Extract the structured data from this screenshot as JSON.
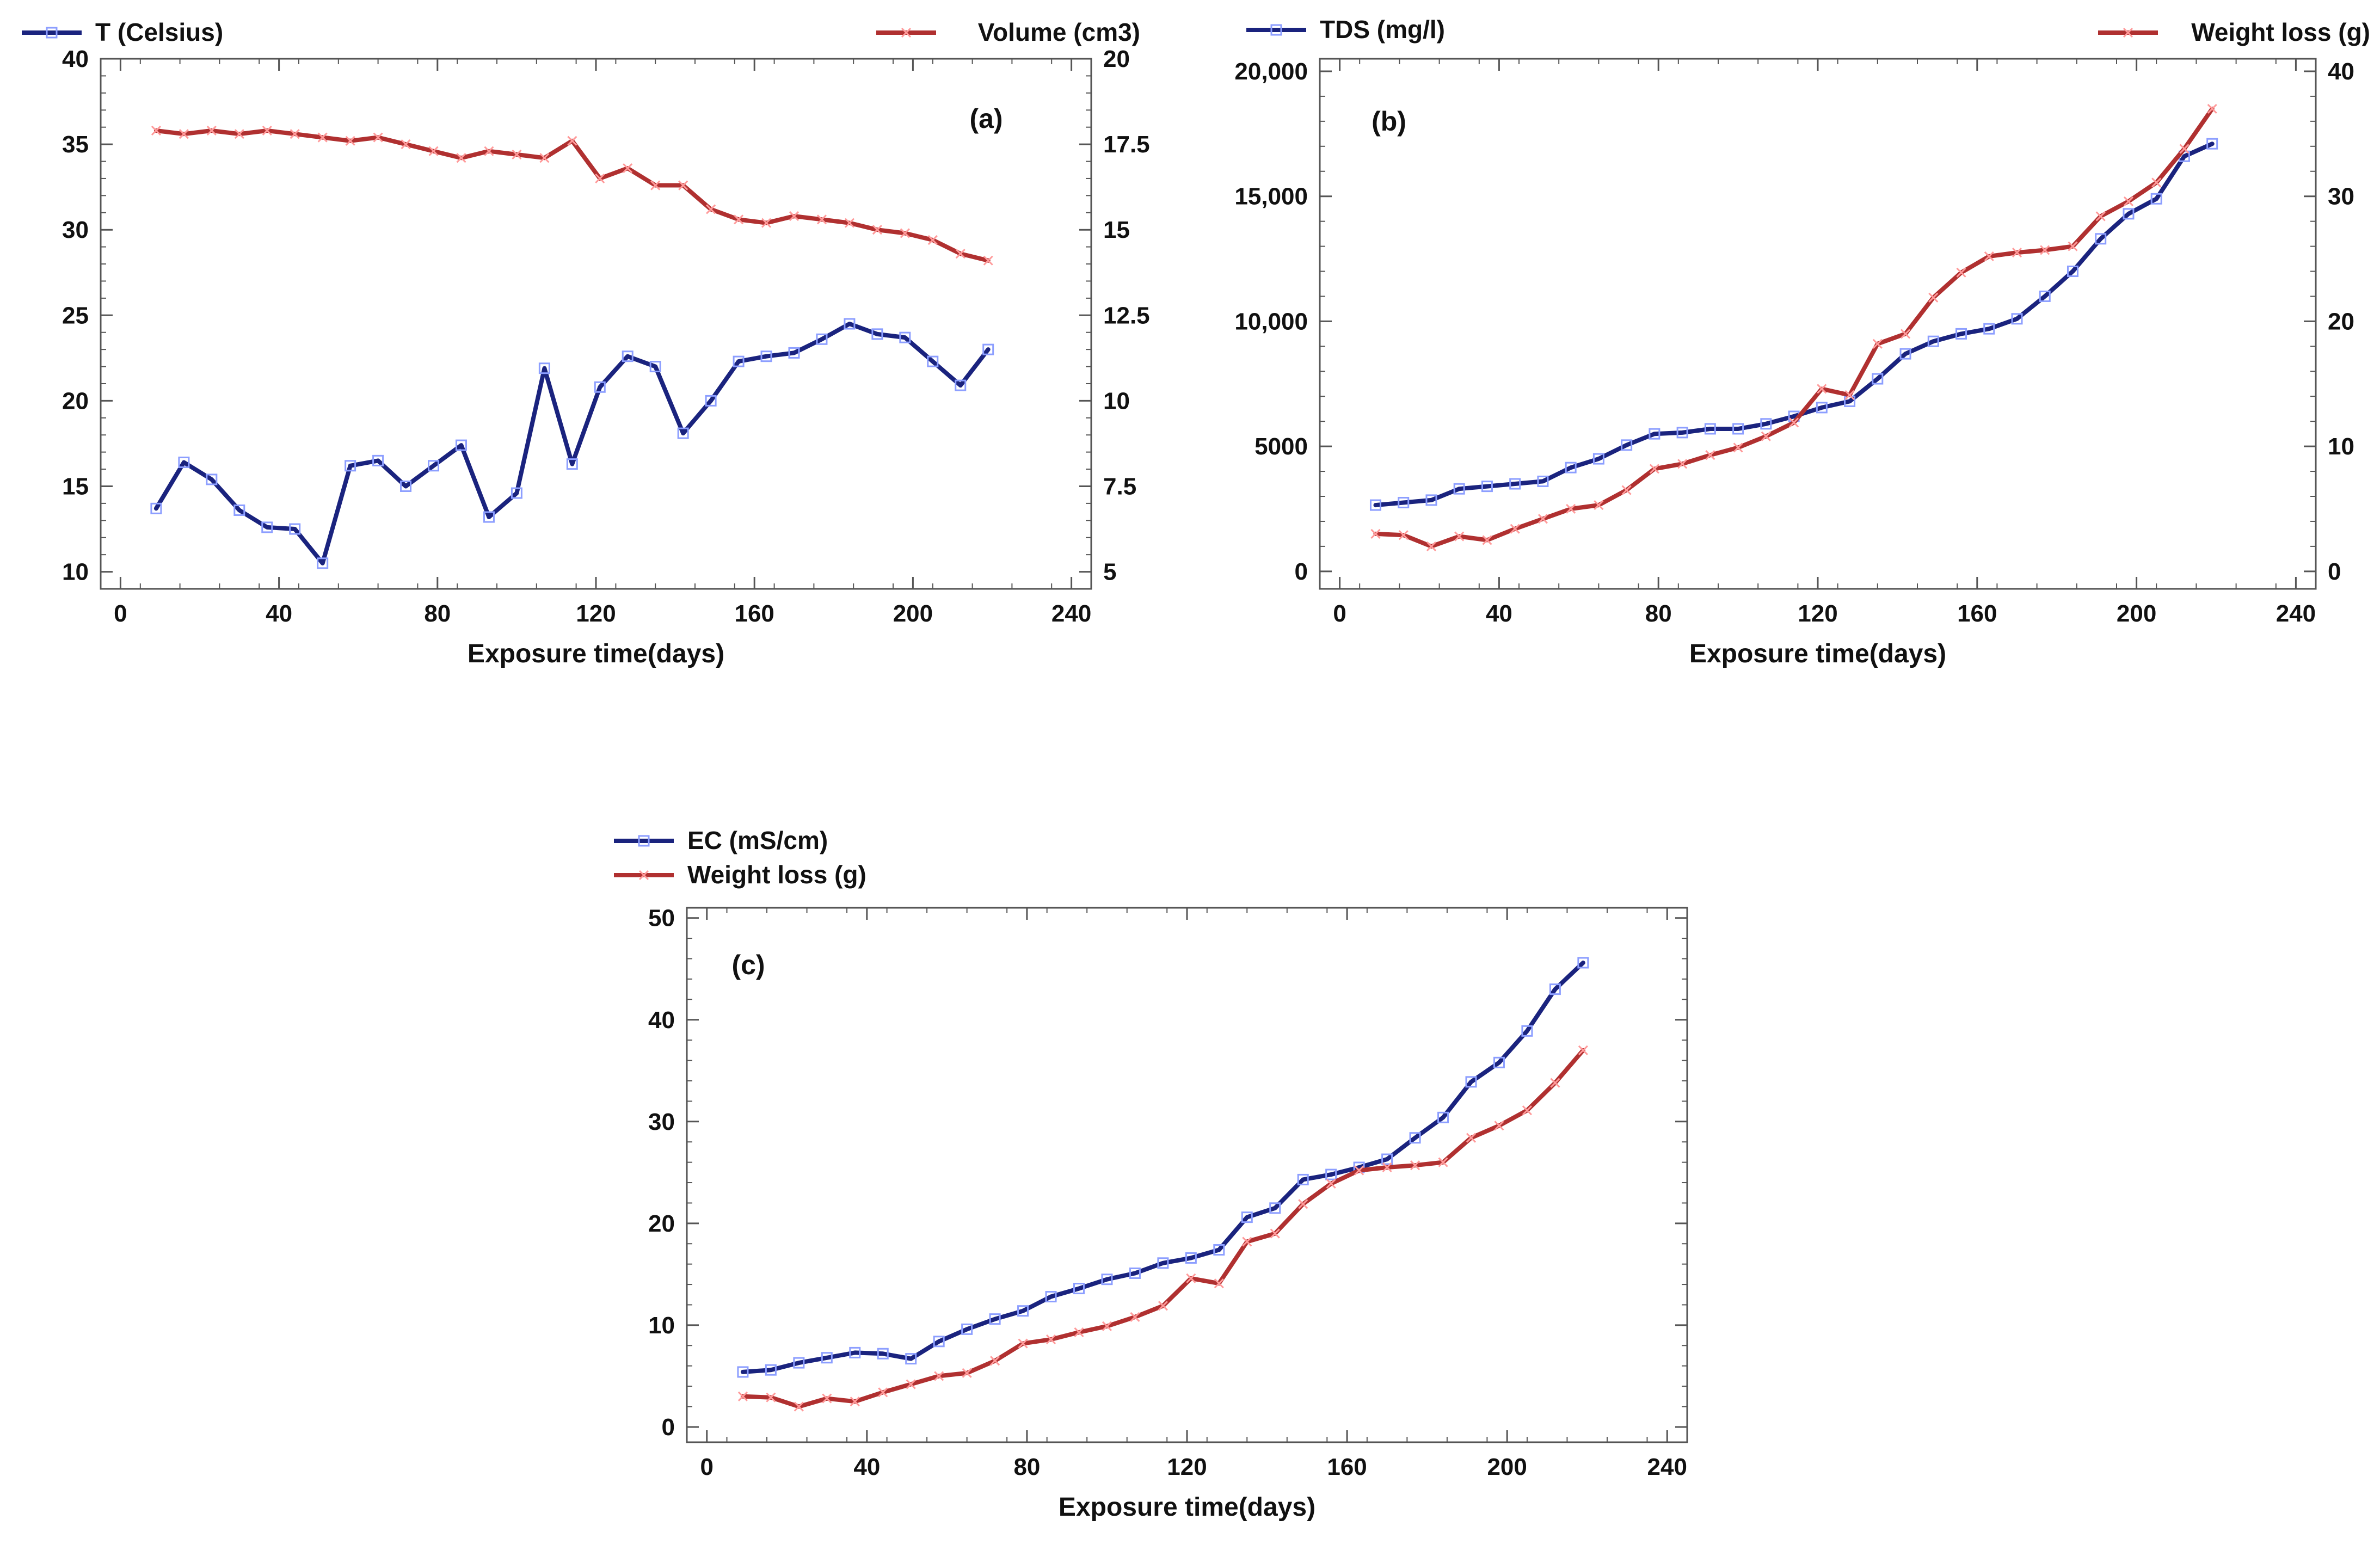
{
  "colors": {
    "blue": "#1a237e",
    "red": "#b03030",
    "blue_marker": "#8c9eff",
    "red_marker": "#ff9a9a",
    "frame": "#555555"
  },
  "chart_data": [
    {
      "type": "line",
      "panel": "(a)",
      "xlabel": "Exposure time(days)",
      "xlim": [
        -5,
        245
      ],
      "x_ticks": [
        0,
        40,
        80,
        120,
        160,
        200,
        240
      ],
      "y_left": {
        "label": "T (Celsius)",
        "lim": [
          9,
          40
        ],
        "ticks": [
          10,
          15,
          20,
          25,
          30,
          35,
          40
        ],
        "tick_labels": [
          "10",
          "15",
          "20",
          "25",
          "30",
          "35",
          "40"
        ]
      },
      "y_right": {
        "label": "Volume (cm3)",
        "lim": [
          4.5,
          20
        ],
        "ticks": [
          5,
          7.5,
          10,
          12.5,
          15,
          17.5,
          20
        ],
        "tick_labels": [
          "5",
          "7.5",
          "10",
          "12.5",
          "15",
          "17.5",
          "20"
        ]
      },
      "legend_left": "top-left",
      "legend_right": "top-right",
      "series": [
        {
          "name": "T (Celsius)",
          "axis": "left",
          "color": "blue",
          "x": [
            9,
            16,
            23,
            30,
            37,
            44,
            51,
            58,
            65,
            72,
            79,
            86,
            93,
            100,
            107,
            114,
            121,
            128,
            135,
            142,
            149,
            156,
            163,
            170,
            177,
            184,
            191,
            198,
            205,
            212,
            219
          ],
          "y": [
            13.7,
            16.4,
            15.4,
            13.6,
            12.6,
            12.5,
            10.5,
            16.2,
            16.5,
            15.0,
            16.2,
            17.4,
            13.2,
            14.6,
            21.9,
            16.3,
            20.8,
            22.6,
            22.0,
            18.1,
            20.0,
            22.3,
            22.6,
            22.8,
            23.6,
            24.5,
            23.9,
            23.7,
            22.3,
            20.9,
            23.0
          ]
        },
        {
          "name": "Volume (cm3)",
          "axis": "right",
          "color": "red",
          "x": [
            9,
            16,
            23,
            30,
            37,
            44,
            51,
            58,
            65,
            72,
            79,
            86,
            93,
            100,
            107,
            114,
            121,
            128,
            135,
            142,
            149,
            156,
            163,
            170,
            177,
            184,
            191,
            198,
            205,
            212,
            219
          ],
          "y": [
            17.9,
            17.8,
            17.9,
            17.8,
            17.9,
            17.8,
            17.7,
            17.6,
            17.7,
            17.5,
            17.3,
            17.1,
            17.3,
            17.2,
            17.1,
            17.6,
            16.5,
            16.8,
            16.3,
            16.3,
            15.6,
            15.3,
            15.2,
            15.4,
            15.3,
            15.2,
            15.0,
            14.9,
            14.7,
            14.3,
            14.1
          ]
        }
      ]
    },
    {
      "type": "line",
      "panel": "(b)",
      "xlabel": "Exposure time(days)",
      "xlim": [
        -5,
        245
      ],
      "x_ticks": [
        0,
        40,
        80,
        120,
        160,
        200,
        240
      ],
      "y_left": {
        "label": "TDS (mg/l)",
        "lim": [
          -700,
          20500
        ],
        "ticks": [
          0,
          5000,
          10000,
          15000,
          20000
        ],
        "tick_labels": [
          "0",
          "5000",
          "10,000",
          "15,000",
          "20,000"
        ]
      },
      "y_right": {
        "label": "Weight loss (g)",
        "lim": [
          -1.4,
          41
        ],
        "ticks": [
          0,
          10,
          20,
          30,
          40
        ],
        "tick_labels": [
          "0",
          "10",
          "20",
          "30",
          "40"
        ]
      },
      "legend_left": "top-left",
      "legend_right": "top-right",
      "series": [
        {
          "name": "TDS (mg/l)",
          "axis": "left",
          "color": "blue",
          "x": [
            9,
            16,
            23,
            30,
            37,
            44,
            51,
            58,
            65,
            72,
            79,
            86,
            93,
            100,
            107,
            114,
            121,
            128,
            135,
            142,
            149,
            156,
            163,
            170,
            177,
            184,
            191,
            198,
            205,
            212,
            219
          ],
          "y": [
            2650,
            2750,
            2850,
            3300,
            3400,
            3500,
            3600,
            4150,
            4500,
            5050,
            5500,
            5550,
            5700,
            5700,
            5900,
            6200,
            6550,
            6800,
            7700,
            8700,
            9200,
            9500,
            9700,
            10100,
            11000,
            12000,
            13300,
            14300,
            14900,
            16600,
            17100
          ]
        },
        {
          "name": "Weight loss (g)",
          "axis": "right",
          "color": "red",
          "x": [
            9,
            16,
            23,
            30,
            37,
            44,
            51,
            58,
            65,
            72,
            79,
            86,
            93,
            100,
            107,
            114,
            121,
            128,
            135,
            142,
            149,
            156,
            163,
            170,
            177,
            184,
            191,
            198,
            205,
            212,
            219
          ],
          "y": [
            3.0,
            2.9,
            2.0,
            2.8,
            2.5,
            3.4,
            4.2,
            5.0,
            5.3,
            6.5,
            8.2,
            8.6,
            9.3,
            9.9,
            10.8,
            11.9,
            14.6,
            14.1,
            18.2,
            19.0,
            21.9,
            23.9,
            25.2,
            25.5,
            25.7,
            26.0,
            28.4,
            29.6,
            31.1,
            33.8,
            37.0
          ]
        }
      ]
    },
    {
      "type": "line",
      "panel": "(c)",
      "xlabel": "Exposure time(days)",
      "xlim": [
        -5,
        245
      ],
      "x_ticks": [
        0,
        40,
        80,
        120,
        160,
        200,
        240
      ],
      "y_left": {
        "lim": [
          -1.5,
          51
        ],
        "ticks": [
          0,
          10,
          20,
          30,
          40,
          50
        ],
        "tick_labels": [
          "0",
          "10",
          "20",
          "30",
          "40",
          "50"
        ]
      },
      "legend": [
        "EC (mS/cm)",
        "Weight loss (g)"
      ],
      "legend_position": "top-left",
      "series": [
        {
          "name": "EC (mS/cm)",
          "axis": "left",
          "color": "blue",
          "x": [
            9,
            16,
            23,
            30,
            37,
            44,
            51,
            58,
            65,
            72,
            79,
            86,
            93,
            100,
            107,
            114,
            121,
            128,
            135,
            142,
            149,
            156,
            163,
            170,
            177,
            184,
            191,
            198,
            205,
            212,
            219
          ],
          "y": [
            5.4,
            5.6,
            6.3,
            6.8,
            7.3,
            7.2,
            6.7,
            8.4,
            9.6,
            10.6,
            11.4,
            12.8,
            13.6,
            14.5,
            15.1,
            16.1,
            16.6,
            17.4,
            20.6,
            21.5,
            24.3,
            24.8,
            25.5,
            26.3,
            28.4,
            30.4,
            33.9,
            35.8,
            38.9,
            43.0,
            45.6
          ]
        },
        {
          "name": "Weight loss (g)",
          "axis": "left",
          "color": "red",
          "x": [
            9,
            16,
            23,
            30,
            37,
            44,
            51,
            58,
            65,
            72,
            79,
            86,
            93,
            100,
            107,
            114,
            121,
            128,
            135,
            142,
            149,
            156,
            163,
            170,
            177,
            184,
            191,
            198,
            205,
            212,
            219
          ],
          "y": [
            3.0,
            2.9,
            2.0,
            2.8,
            2.5,
            3.4,
            4.2,
            5.0,
            5.3,
            6.5,
            8.2,
            8.6,
            9.3,
            9.9,
            10.8,
            11.9,
            14.6,
            14.1,
            18.2,
            19.0,
            21.9,
            23.9,
            25.2,
            25.5,
            25.7,
            26.0,
            28.4,
            29.6,
            31.1,
            33.8,
            37.0
          ]
        }
      ]
    }
  ]
}
